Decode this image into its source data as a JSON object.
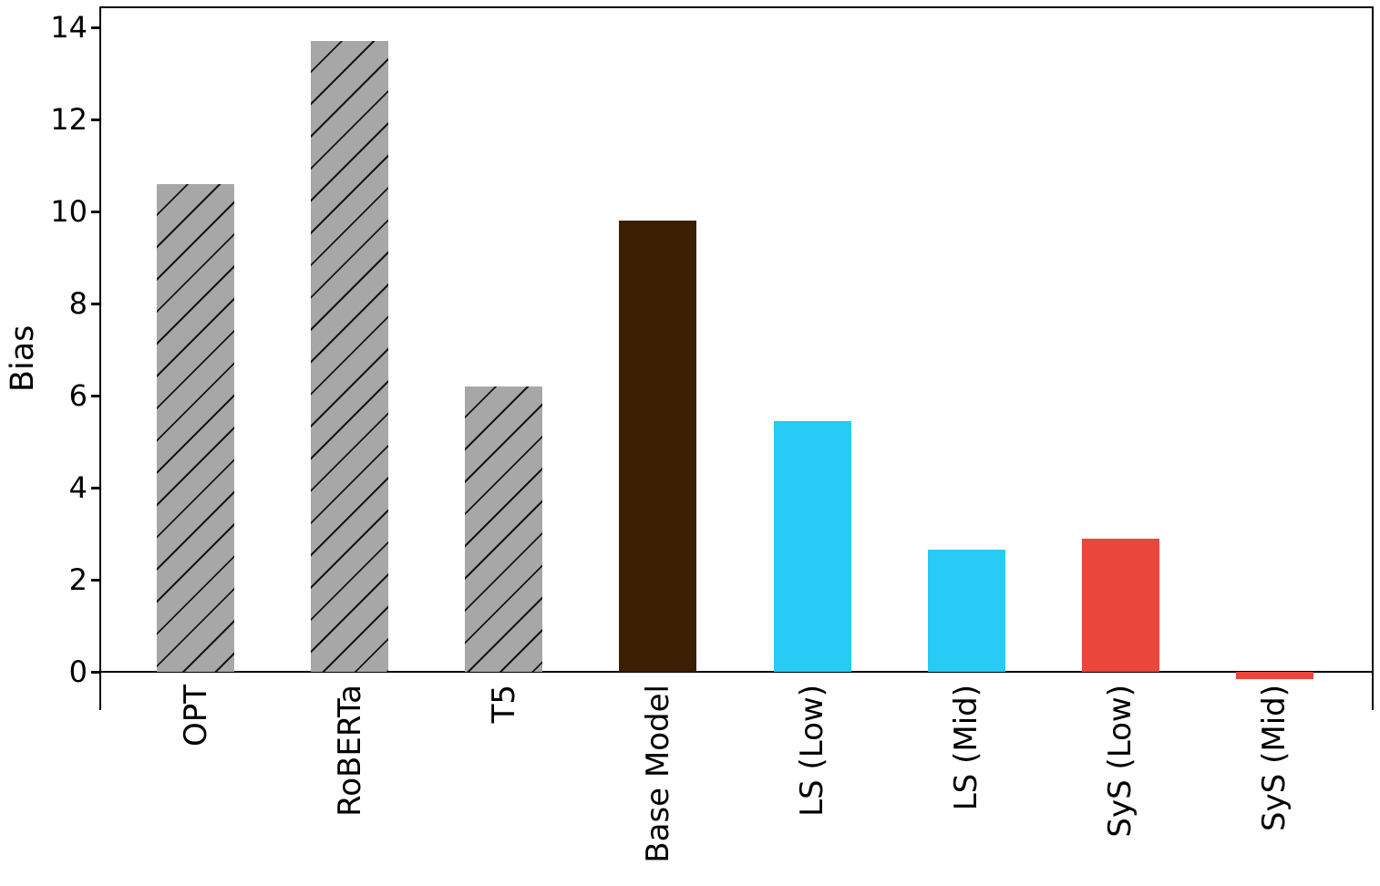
{
  "figure": {
    "background": "#ffffff",
    "frame_color": "#000000",
    "hatch_line_color": "#161616"
  },
  "chart_data": {
    "type": "bar",
    "title": "",
    "ylabel": "Bias",
    "categories": [
      "OPT",
      "RoBERTa",
      "T5",
      "Base Model",
      "LS (Low)",
      "LS (Mid)",
      "SyS (Low)",
      "SyS (Mid)"
    ],
    "values": [
      10.6,
      13.7,
      6.2,
      9.8,
      5.45,
      2.65,
      2.9,
      -0.16
    ],
    "bar_colors": [
      "#A7A7A7",
      "#A7A7A7",
      "#A7A7A7",
      "#3B1F02",
      "#27CBF5",
      "#27CBF5",
      "#E9463C",
      "#E9463C"
    ],
    "bar_hatches": [
      "/",
      "/",
      "/",
      "",
      "",
      "",
      "",
      ""
    ],
    "yticks": [
      0,
      2,
      4,
      6,
      8,
      10,
      12,
      14
    ],
    "ylim": [
      -0.83,
      14.44
    ],
    "grid": false,
    "legend": "none"
  }
}
